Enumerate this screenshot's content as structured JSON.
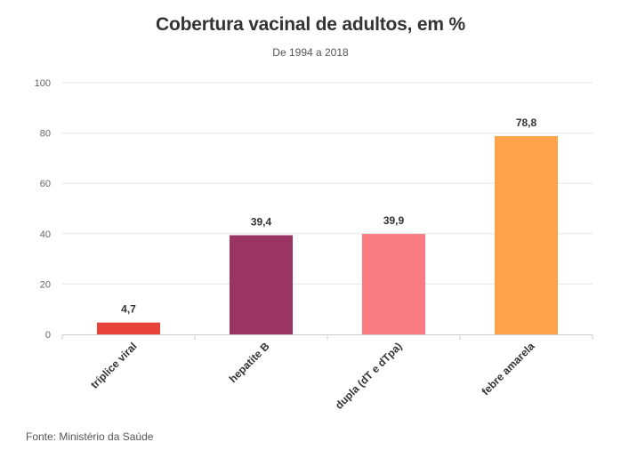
{
  "header": {
    "title": "Cobertura vacinal de adultos, em %",
    "subtitle": "De 1994 a 2018"
  },
  "footer": {
    "source": "Fonte: Ministério da Saúde"
  },
  "chart_data": {
    "type": "bar",
    "title": "Cobertura vacinal de adultos, em %",
    "subtitle": "De 1994 a 2018",
    "categories": [
      "tríplice viral",
      "hepatite B",
      "dupla (dT e dTpa)",
      "febre amarela"
    ],
    "values": [
      4.7,
      39.4,
      39.9,
      78.8
    ],
    "data_labels": [
      "4,7",
      "39,4",
      "39,9",
      "78,8"
    ],
    "colors": [
      "#E8433A",
      "#9A3563",
      "#F77B80",
      "#FFA24C"
    ],
    "xlabel": "",
    "ylabel": "",
    "ylim": [
      0,
      100
    ],
    "yticks": [
      0,
      20,
      40,
      60,
      80,
      100
    ],
    "grid": true,
    "legend": "none"
  }
}
